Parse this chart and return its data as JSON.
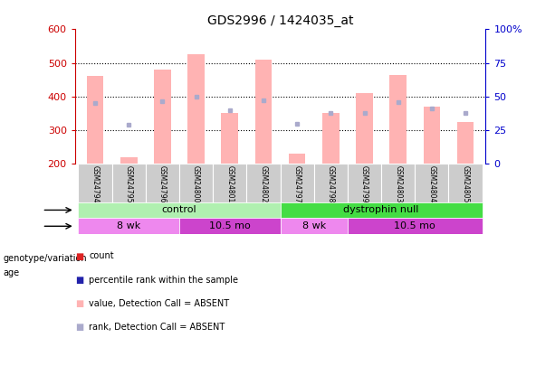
{
  "title": "GDS2996 / 1424035_at",
  "samples": [
    "GSM24794",
    "GSM24795",
    "GSM24796",
    "GSM24800",
    "GSM24801",
    "GSM24802",
    "GSM24797",
    "GSM24798",
    "GSM24799",
    "GSM24803",
    "GSM24804",
    "GSM24805"
  ],
  "bar_values": [
    460,
    220,
    480,
    525,
    350,
    510,
    230,
    350,
    410,
    465,
    370,
    325
  ],
  "rank_dots": [
    380,
    315,
    385,
    400,
    358,
    388,
    318,
    350,
    350,
    382,
    365,
    350
  ],
  "ylim": [
    200,
    600
  ],
  "yticks": [
    200,
    300,
    400,
    500,
    600
  ],
  "y2lim": [
    0,
    100
  ],
  "y2ticks": [
    0,
    25,
    50,
    75,
    100
  ],
  "y2labels": [
    "0",
    "25",
    "50",
    "75",
    "100%"
  ],
  "bar_color_absent": "#ffb3b3",
  "dot_color_absent": "#aaaacc",
  "bar_color_present": "#dd2222",
  "dot_color_present": "#2222aa",
  "bar_width": 0.5,
  "axis_color_left": "#cc0000",
  "axis_color_right": "#0000cc",
  "bg_sample_row": "#cccccc",
  "genotype_groups": [
    {
      "label": "control",
      "start": 0,
      "end": 5,
      "color": "#b0f0b0"
    },
    {
      "label": "dystrophin null",
      "start": 6,
      "end": 11,
      "color": "#44dd44"
    }
  ],
  "age_groups": [
    {
      "label": "8 wk",
      "start": 0,
      "end": 2,
      "color": "#ee88ee"
    },
    {
      "label": "10.5 mo",
      "start": 3,
      "end": 5,
      "color": "#cc44cc"
    },
    {
      "label": "8 wk",
      "start": 6,
      "end": 7,
      "color": "#ee88ee"
    },
    {
      "label": "10.5 mo",
      "start": 8,
      "end": 11,
      "color": "#cc44cc"
    }
  ],
  "legend_items": [
    {
      "label": "count",
      "color": "#dd2222"
    },
    {
      "label": "percentile rank within the sample",
      "color": "#2222aa"
    },
    {
      "label": "value, Detection Call = ABSENT",
      "color": "#ffb3b3"
    },
    {
      "label": "rank, Detection Call = ABSENT",
      "color": "#aaaacc"
    }
  ]
}
